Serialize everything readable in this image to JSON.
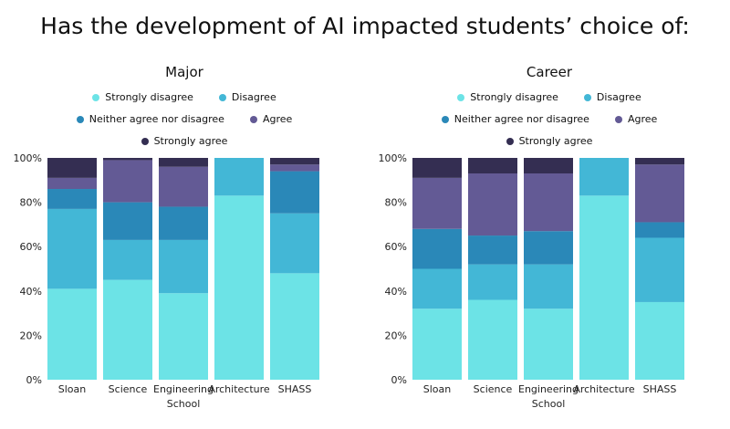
{
  "title": "Has the development of AI impacted students’ choice of:",
  "colors": {
    "strongly_disagree": "#6ce3e6",
    "disagree": "#43b7d6",
    "neutral": "#2a88b8",
    "agree": "#635a95",
    "strongly_agree": "#342e52"
  },
  "chart_data": [
    {
      "type": "bar",
      "stacked": true,
      "title": "Major",
      "xlabel": "School",
      "ylabel": "",
      "ylim": [
        0,
        100
      ],
      "yticks": [
        "0%",
        "20%",
        "40%",
        "60%",
        "80%",
        "100%"
      ],
      "categories": [
        "Sloan",
        "Science",
        "Engineering",
        "Architecture",
        "SHASS"
      ],
      "legend": [
        "Strongly disagree",
        "Disagree",
        "Neither agree nor disagree",
        "Agree",
        "Strongly agree"
      ],
      "series": [
        {
          "name": "Strongly disagree",
          "values": [
            41,
            45,
            39,
            83,
            48
          ]
        },
        {
          "name": "Disagree",
          "values": [
            36,
            18,
            24,
            17,
            27
          ]
        },
        {
          "name": "Neither agree nor disagree",
          "values": [
            9,
            17,
            15,
            0,
            19
          ]
        },
        {
          "name": "Agree",
          "values": [
            5,
            19,
            18,
            0,
            3
          ]
        },
        {
          "name": "Strongly agree",
          "values": [
            9,
            1,
            4,
            0,
            3
          ]
        }
      ]
    },
    {
      "type": "bar",
      "stacked": true,
      "title": "Career",
      "xlabel": "School",
      "ylabel": "",
      "ylim": [
        0,
        100
      ],
      "yticks": [
        "0%",
        "20%",
        "40%",
        "60%",
        "80%",
        "100%"
      ],
      "categories": [
        "Sloan",
        "Science",
        "Engineering",
        "Architecture",
        "SHASS"
      ],
      "legend": [
        "Strongly disagree",
        "Disagree",
        "Neither agree nor disagree",
        "Agree",
        "Strongly agree"
      ],
      "series": [
        {
          "name": "Strongly disagree",
          "values": [
            32,
            36,
            32,
            83,
            35
          ]
        },
        {
          "name": "Disagree",
          "values": [
            18,
            16,
            20,
            17,
            29
          ]
        },
        {
          "name": "Neither agree nor disagree",
          "values": [
            18,
            13,
            15,
            0,
            7
          ]
        },
        {
          "name": "Agree",
          "values": [
            23,
            28,
            26,
            0,
            26
          ]
        },
        {
          "name": "Strongly agree",
          "values": [
            9,
            7,
            7,
            0,
            3
          ]
        }
      ]
    }
  ]
}
